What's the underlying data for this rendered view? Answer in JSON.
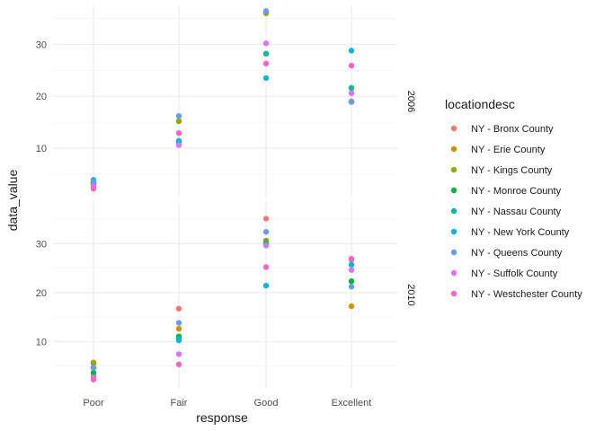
{
  "chart_data": {
    "type": "scatter",
    "xlabel": "response",
    "ylabel": "data_value",
    "categories": [
      "Poor",
      "Fair",
      "Good",
      "Excellent"
    ],
    "legend": {
      "title": "locationdesc",
      "position": "right"
    },
    "grid": true,
    "y_ticks": [
      10,
      20,
      30
    ],
    "panels": [
      {
        "label": "2006",
        "ylim": [
          0.5,
          37.5
        ],
        "series": [
          {
            "name": "NY - Bronx County",
            "color": "#F8766D",
            "values": [
              3.0,
              12.9,
              36.0,
              19.0
            ]
          },
          {
            "name": "NY - Erie County",
            "color": "#D39200",
            "values": [
              3.1,
              15.2,
              36.0,
              19.0
            ]
          },
          {
            "name": "NY - Kings County",
            "color": "#93AA00",
            "values": [
              3.3,
              15.2,
              36.0,
              21.6
            ]
          },
          {
            "name": "NY - Monroe County",
            "color": "#00BA38",
            "values": [
              3.3,
              11.4,
              28.2,
              21.6
            ]
          },
          {
            "name": "NY - Nassau County",
            "color": "#00C19F",
            "values": [
              3.6,
              11.2,
              28.2,
              21.6
            ]
          },
          {
            "name": "NY - New York County",
            "color": "#00B9E3",
            "values": [
              3.9,
              11.4,
              23.5,
              28.8
            ]
          },
          {
            "name": "NY - Queens County",
            "color": "#619CFF",
            "values": [
              3.6,
              16.2,
              36.4,
              18.9
            ]
          },
          {
            "name": "NY - Suffolk County",
            "color": "#DB72FB",
            "values": [
              2.7,
              10.6,
              30.2,
              20.6
            ]
          },
          {
            "name": "NY - Westchester County",
            "color": "#FF61C3",
            "values": [
              2.2,
              12.9,
              26.3,
              25.9
            ]
          }
        ]
      },
      {
        "label": "2010",
        "ylim": [
          0.5,
          38.5
        ],
        "series": [
          {
            "name": "NY - Bronx County",
            "color": "#F8766D",
            "values": [
              3.0,
              16.7,
              35.1,
              26.7
            ]
          },
          {
            "name": "NY - Erie County",
            "color": "#D39200",
            "values": [
              5.7,
              12.6,
              30.6,
              17.2
            ]
          },
          {
            "name": "NY - Kings County",
            "color": "#93AA00",
            "values": [
              5.5,
              11.0,
              30.6,
              22.3
            ]
          },
          {
            "name": "NY - Monroe County",
            "color": "#00BA38",
            "values": [
              3.6,
              11.0,
              30.0,
              22.3
            ]
          },
          {
            "name": "NY - Nassau County",
            "color": "#00C19F",
            "values": [
              4.6,
              10.6,
              30.0,
              25.7
            ]
          },
          {
            "name": "NY - New York County",
            "color": "#00B9E3",
            "values": [
              4.6,
              10.2,
              21.4,
              25.7
            ]
          },
          {
            "name": "NY - Queens County",
            "color": "#619CFF",
            "values": [
              4.6,
              13.8,
              32.4,
              21.2
            ]
          },
          {
            "name": "NY - Suffolk County",
            "color": "#DB72FB",
            "values": [
              2.6,
              7.4,
              29.6,
              24.6
            ]
          },
          {
            "name": "NY - Westchester County",
            "color": "#FF61C3",
            "values": [
              2.2,
              5.3,
              25.2,
              26.9
            ]
          }
        ]
      }
    ]
  }
}
